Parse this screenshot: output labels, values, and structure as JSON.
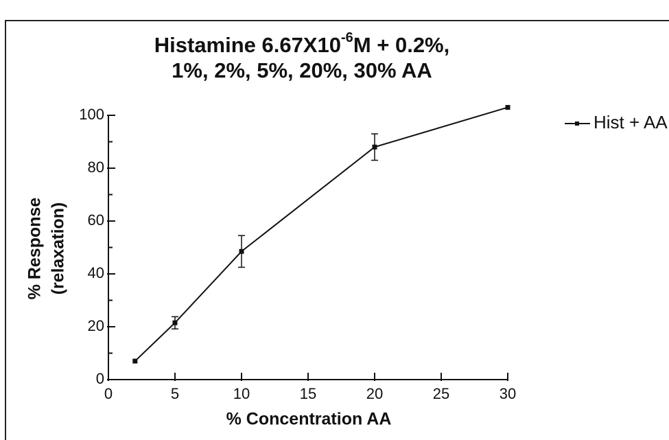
{
  "chart_data": {
    "type": "line",
    "title_parts": [
      "Histamine 6.67X10",
      "-6",
      "M + 0.2%,"
    ],
    "title_line2": "1%, 2%, 5%, 20%, 30% AA",
    "xlabel": "% Concentration AA",
    "ylabel": [
      "% Response",
      "(relaxation)"
    ],
    "x": [
      2,
      5,
      10,
      20,
      30
    ],
    "series": [
      {
        "name": "Hist + AA",
        "color": "#111111",
        "values": [
          7,
          21.5,
          48.5,
          88,
          103
        ],
        "errors": [
          null,
          2.3,
          6,
          5,
          null
        ]
      }
    ],
    "xlim": [
      0,
      30
    ],
    "xticks": [
      0,
      5,
      10,
      15,
      20,
      25,
      30
    ],
    "ylim": [
      0,
      100
    ],
    "yticks": [
      0,
      20,
      40,
      60,
      80,
      100
    ],
    "yminor": [
      10,
      30,
      50,
      70,
      90
    ],
    "legend": "right"
  }
}
